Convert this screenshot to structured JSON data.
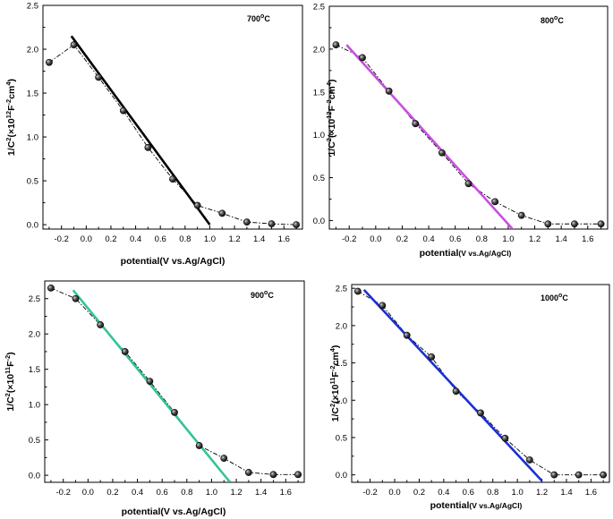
{
  "chart_data": [
    {
      "type": "scatter",
      "temperature_label": "700",
      "temperature_unit": "C",
      "xlabel_main": "potential(V vs.Ag/AgCl)",
      "xlabel_sub": "",
      "ylabel": {
        "pre": "1/C",
        "mid": "(×10",
        "exp": "12",
        "unit": "F",
        "unit_exp": "-2",
        "tail": "cm",
        "tail_exp": "4",
        "close": ")"
      },
      "xlim": [
        -0.35,
        1.75
      ],
      "ylim": [
        -0.05,
        2.5
      ],
      "xticks": [
        "-0.2",
        "0.0",
        "0.2",
        "0.4",
        "0.6",
        "0.8",
        "1.0",
        "1.2",
        "1.4",
        "1.6"
      ],
      "xtick_values": [
        -0.2,
        0.0,
        0.2,
        0.4,
        0.6,
        0.8,
        1.0,
        1.2,
        1.4,
        1.6
      ],
      "yticks": [
        "0.0",
        "0.5",
        "1.0",
        "1.5",
        "2.0",
        "2.5"
      ],
      "ytick_values": [
        0.0,
        0.5,
        1.0,
        1.5,
        2.0,
        2.5
      ],
      "points": {
        "x": [
          -0.3,
          -0.1,
          0.1,
          0.3,
          0.5,
          0.7,
          0.9,
          1.1,
          1.3,
          1.5,
          1.7
        ],
        "y": [
          1.85,
          2.05,
          1.68,
          1.3,
          0.88,
          0.52,
          0.22,
          0.13,
          0.03,
          0.01,
          0.0
        ]
      },
      "fit": {
        "color": "#000000",
        "x": [
          -0.12,
          1.0
        ],
        "y": [
          2.15,
          0.0
        ]
      }
    },
    {
      "type": "scatter",
      "temperature_label": "800",
      "temperature_unit": "C",
      "xlabel_main": "potential",
      "xlabel_sub": "(V vs.Ag/AgCl)",
      "ylabel": {
        "pre": "1/C",
        "mid": "(×10",
        "exp": "12",
        "unit": "F",
        "unit_exp": "-2",
        "tail": "cm",
        "tail_exp": "4",
        "close": ")"
      },
      "xlim": [
        -0.35,
        1.75
      ],
      "ylim": [
        -0.1,
        2.5
      ],
      "xticks": [
        "-0.2",
        "0.0",
        "0.2",
        "0.4",
        "0.6",
        "0.8",
        "1.0",
        "1.2",
        "1.4",
        "1.6"
      ],
      "xtick_values": [
        -0.2,
        0.0,
        0.2,
        0.4,
        0.6,
        0.8,
        1.0,
        1.2,
        1.4,
        1.6
      ],
      "yticks": [
        "0.0",
        "0.5",
        "1.0",
        "1.5",
        "2.0",
        "2.5"
      ],
      "ytick_values": [
        0.0,
        0.5,
        1.0,
        1.5,
        2.0,
        2.5
      ],
      "points": {
        "x": [
          -0.3,
          -0.1,
          0.1,
          0.3,
          0.5,
          0.7,
          0.9,
          1.1,
          1.3,
          1.5,
          1.7
        ],
        "y": [
          2.05,
          1.9,
          1.51,
          1.13,
          0.79,
          0.43,
          0.22,
          0.06,
          -0.04,
          -0.04,
          -0.04
        ]
      },
      "fit": {
        "color": "#c84fe0",
        "x": [
          -0.22,
          1.08
        ],
        "y": [
          2.05,
          -0.18
        ]
      }
    },
    {
      "type": "scatter",
      "temperature_label": "900",
      "temperature_unit": "C",
      "xlabel_main": "potential(V vs.Ag/AgCl)",
      "xlabel_sub": "",
      "ylabel": {
        "pre": "1/C",
        "mid": "(×10",
        "exp": "11",
        "unit": "F",
        "unit_exp": "-2",
        "tail": "",
        "tail_exp": "",
        "close": ")"
      },
      "xlim": [
        -0.35,
        1.75
      ],
      "ylim": [
        -0.1,
        2.75
      ],
      "xticks": [
        "-0.2",
        "0.0",
        "0.2",
        "0.4",
        "0.6",
        "0.8",
        "1.0",
        "1.2",
        "1.4",
        "1.6"
      ],
      "xtick_values": [
        -0.2,
        0.0,
        0.2,
        0.4,
        0.6,
        0.8,
        1.0,
        1.2,
        1.4,
        1.6
      ],
      "yticks": [
        "0.0",
        "0.5",
        "1.0",
        "1.5",
        "2.0",
        "2.5"
      ],
      "ytick_values": [
        0.0,
        0.5,
        1.0,
        1.5,
        2.0,
        2.5
      ],
      "points": {
        "x": [
          -0.3,
          -0.1,
          0.1,
          0.3,
          0.5,
          0.7,
          0.9,
          1.1,
          1.3,
          1.5,
          1.7
        ],
        "y": [
          2.65,
          2.5,
          2.13,
          1.75,
          1.33,
          0.89,
          0.42,
          0.24,
          0.04,
          0.01,
          0.01
        ]
      },
      "fit": {
        "color": "#33c49a",
        "x": [
          -0.12,
          1.15
        ],
        "y": [
          2.62,
          -0.1
        ]
      }
    },
    {
      "type": "scatter",
      "temperature_label": "1000",
      "temperature_unit": "C",
      "xlabel_main": "potential",
      "xlabel_sub": "(V vs.Ag/AgCl)",
      "ylabel": {
        "pre": "1/C",
        "mid": "(×10",
        "exp": "11",
        "unit": "F",
        "unit_exp": "-2",
        "tail": "cm",
        "tail_exp": "4",
        "close": ")"
      },
      "xlim": [
        -0.35,
        1.75
      ],
      "ylim": [
        -0.1,
        2.55
      ],
      "xticks": [
        "-0.2",
        "0.0",
        "0.2",
        "0.4",
        "0.6",
        "0.8",
        "1.0",
        "1.2",
        "1.4",
        "1.6"
      ],
      "xtick_values": [
        -0.2,
        0.0,
        0.2,
        0.4,
        0.6,
        0.8,
        1.0,
        1.2,
        1.4,
        1.6
      ],
      "yticks": [
        "0.0",
        "0.5",
        "1.0",
        "1.5",
        "2.0",
        "2.5"
      ],
      "ytick_values": [
        0.0,
        0.5,
        1.0,
        1.5,
        2.0,
        2.5
      ],
      "points": {
        "x": [
          -0.3,
          -0.1,
          0.1,
          0.3,
          0.5,
          0.7,
          0.9,
          1.1,
          1.3,
          1.5,
          1.7
        ],
        "y": [
          2.46,
          2.27,
          1.87,
          1.58,
          1.12,
          0.83,
          0.49,
          0.2,
          0.0,
          0.0,
          0.0
        ]
      },
      "fit": {
        "color": "#1a2fd4",
        "x": [
          -0.25,
          1.2
        ],
        "y": [
          2.48,
          -0.08
        ]
      }
    }
  ]
}
